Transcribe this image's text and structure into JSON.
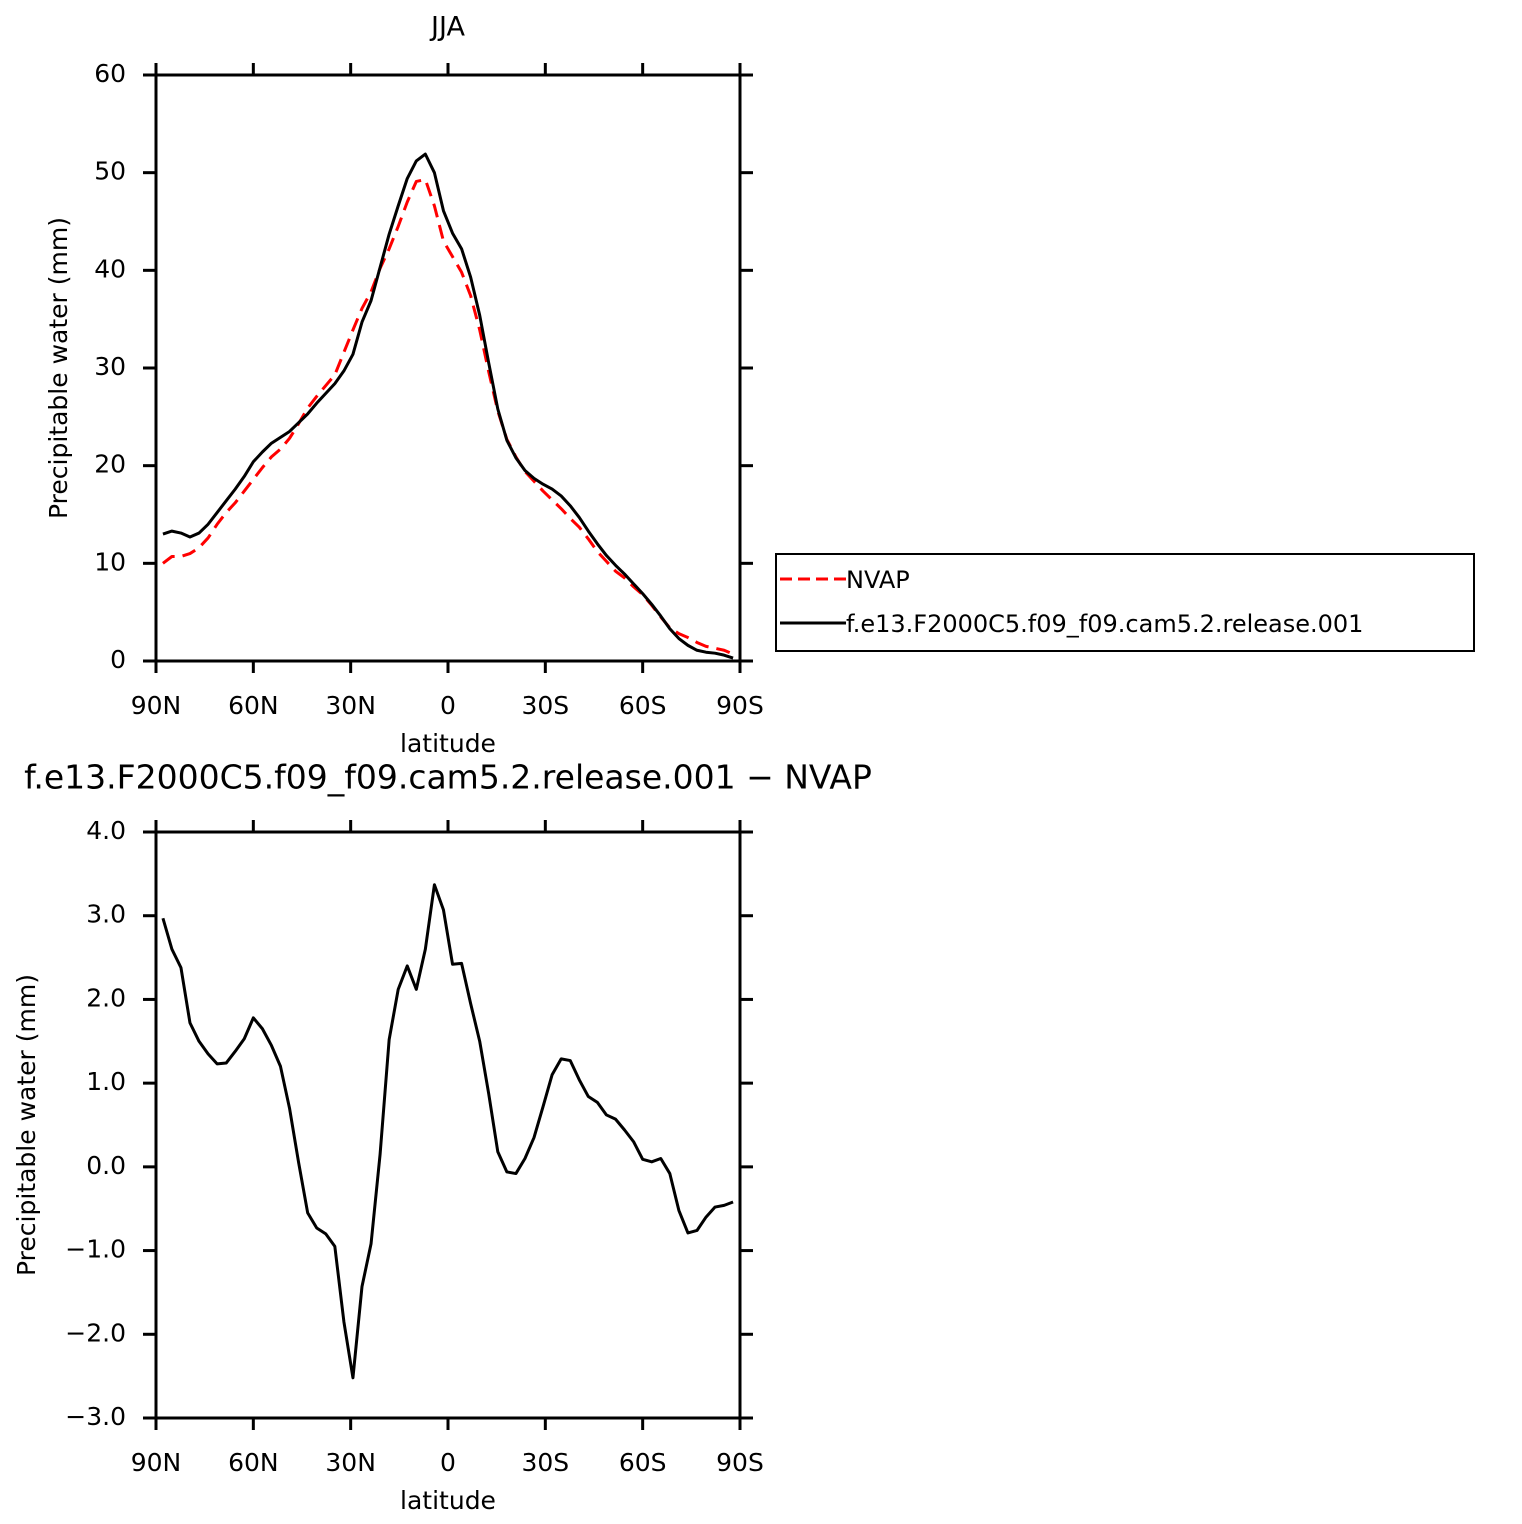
{
  "chart_data": [
    {
      "type": "line",
      "title": "JJA",
      "x_label": "latitude",
      "y_label": "Precipitable water (mm)",
      "xlim": [
        90,
        -90
      ],
      "ylim": [
        0,
        60
      ],
      "xticks": [
        {
          "value": 90,
          "label": "90N"
        },
        {
          "value": 60,
          "label": "60N"
        },
        {
          "value": 30,
          "label": "30N"
        },
        0,
        {
          "value": -30,
          "label": "30S"
        },
        {
          "value": -60,
          "label": "60S"
        },
        {
          "value": -90,
          "label": "90S"
        }
      ],
      "yticks": [
        0,
        10,
        20,
        30,
        40,
        50,
        60
      ],
      "legend": "right",
      "x": [
        87.86,
        85.1,
        82.31,
        79.53,
        76.74,
        73.95,
        71.16,
        68.37,
        65.58,
        62.79,
        60.0,
        57.21,
        54.42,
        51.63,
        48.84,
        46.04,
        43.25,
        40.46,
        37.67,
        34.88,
        32.09,
        29.3,
        26.51,
        23.72,
        20.93,
        18.14,
        15.35,
        12.56,
        9.77,
        6.98,
        4.19,
        1.4,
        -1.4,
        -4.19,
        -6.98,
        -9.77,
        -12.56,
        -15.35,
        -18.14,
        -20.93,
        -23.72,
        -26.51,
        -29.3,
        -32.09,
        -34.88,
        -37.67,
        -40.46,
        -43.25,
        -46.04,
        -48.84,
        -51.63,
        -54.42,
        -57.21,
        -60.0,
        -62.79,
        -65.58,
        -68.37,
        -71.16,
        -73.95,
        -76.74,
        -79.53,
        -82.31,
        -85.1,
        -87.86
      ],
      "series": [
        {
          "name": "NVAP",
          "color": "#ff0000",
          "line_style": "dashed",
          "values": [
            10.0,
            10.7,
            10.7,
            11.0,
            11.6,
            12.6,
            14.0,
            15.2,
            16.2,
            17.4,
            18.6,
            19.8,
            20.9,
            21.7,
            22.8,
            24.3,
            25.9,
            27.1,
            28.2,
            29.3,
            31.6,
            33.9,
            36.1,
            37.8,
            40.2,
            42.2,
            44.5,
            47.0,
            49.1,
            49.3,
            46.6,
            43.0,
            41.4,
            39.8,
            37.4,
            33.9,
            29.6,
            25.6,
            22.7,
            20.9,
            19.4,
            18.4,
            17.4,
            16.5,
            15.6,
            14.6,
            13.7,
            12.5,
            11.2,
            10.2,
            9.2,
            8.5,
            7.6,
            6.8,
            5.7,
            4.5,
            3.4,
            2.8,
            2.4,
            1.9,
            1.5,
            1.3,
            1.1,
            0.7
          ]
        },
        {
          "name": "f.e13.F2000C5.f09_f09.cam5.2.release.001",
          "color": "#000000",
          "line_style": "solid",
          "values": [
            13.0,
            13.3,
            13.1,
            12.7,
            13.1,
            14.0,
            15.2,
            16.4,
            17.6,
            18.9,
            20.4,
            21.4,
            22.3,
            22.9,
            23.5,
            24.4,
            25.3,
            26.4,
            27.4,
            28.4,
            29.7,
            31.4,
            34.7,
            36.9,
            40.3,
            43.7,
            46.6,
            49.4,
            51.2,
            51.9,
            50.0,
            46.1,
            43.8,
            42.2,
            39.3,
            35.4,
            30.5,
            25.8,
            22.6,
            20.8,
            19.5,
            18.7,
            18.1,
            17.6,
            16.9,
            15.9,
            14.7,
            13.3,
            12.0,
            10.8,
            9.8,
            8.9,
            7.9,
            6.9,
            5.8,
            4.6,
            3.3,
            2.3,
            1.6,
            1.1,
            0.9,
            0.8,
            0.6,
            0.3
          ]
        }
      ]
    },
    {
      "type": "line",
      "title": "f.e13.F2000C5.f09_f09.cam5.2.release.001 − NVAP",
      "x_label": "latitude",
      "y_label": "Precipitable water (mm)",
      "xlim": [
        90,
        -90
      ],
      "ylim": [
        -3,
        4
      ],
      "xticks": [
        {
          "value": 90,
          "label": "90N"
        },
        {
          "value": 60,
          "label": "60N"
        },
        {
          "value": 30,
          "label": "30N"
        },
        0,
        {
          "value": -30,
          "label": "30S"
        },
        {
          "value": -60,
          "label": "60S"
        },
        {
          "value": -90,
          "label": "90S"
        }
      ],
      "yticks": [
        {
          "value": -3,
          "label": "−3.0"
        },
        {
          "value": -2,
          "label": "−2.0"
        },
        {
          "value": -1,
          "label": "−1.0"
        },
        {
          "value": 0,
          "label": "0.0"
        },
        {
          "value": 1,
          "label": "1.0"
        },
        {
          "value": 2,
          "label": "2.0"
        },
        {
          "value": 3,
          "label": "3.0"
        },
        {
          "value": 4,
          "label": "4.0"
        }
      ],
      "color": "#000000",
      "line_style": "solid",
      "x": [
        87.86,
        85.1,
        82.31,
        79.53,
        76.74,
        73.95,
        71.16,
        68.37,
        65.58,
        62.79,
        60.0,
        57.21,
        54.42,
        51.63,
        48.84,
        46.04,
        43.25,
        40.46,
        37.67,
        34.88,
        32.09,
        29.3,
        26.51,
        23.72,
        20.93,
        18.14,
        15.35,
        12.56,
        9.77,
        6.98,
        4.19,
        1.4,
        -1.4,
        -4.19,
        -6.98,
        -9.77,
        -12.56,
        -15.35,
        -18.14,
        -20.93,
        -23.72,
        -26.51,
        -29.3,
        -32.09,
        -34.88,
        -37.67,
        -40.46,
        -43.25,
        -46.04,
        -48.84,
        -51.63,
        -54.42,
        -57.21,
        -60.0,
        -62.79,
        -65.58,
        -68.37,
        -71.16,
        -73.95,
        -76.74,
        -79.53,
        -82.31,
        -85.1,
        -87.86
      ],
      "values": [
        2.97,
        2.6,
        2.38,
        1.72,
        1.5,
        1.35,
        1.23,
        1.24,
        1.38,
        1.53,
        1.78,
        1.65,
        1.45,
        1.2,
        0.7,
        0.05,
        -0.55,
        -0.73,
        -0.8,
        -0.95,
        -1.85,
        -2.52,
        -1.43,
        -0.92,
        0.15,
        1.52,
        2.12,
        2.4,
        2.12,
        2.6,
        3.37,
        3.07,
        2.42,
        2.43,
        1.95,
        1.5,
        0.87,
        0.18,
        -0.06,
        -0.08,
        0.1,
        0.35,
        0.72,
        1.1,
        1.29,
        1.27,
        1.04,
        0.84,
        0.77,
        0.62,
        0.57,
        0.44,
        0.3,
        0.09,
        0.06,
        0.1,
        -0.08,
        -0.52,
        -0.79,
        -0.76,
        -0.6,
        -0.48,
        -0.46,
        -0.42
      ]
    }
  ]
}
